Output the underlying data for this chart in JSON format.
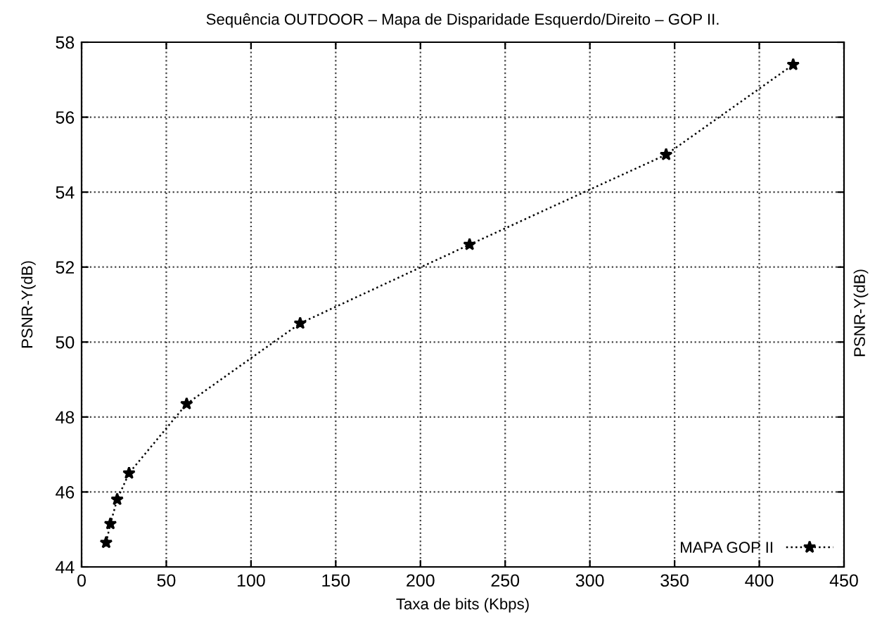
{
  "chart_data": {
    "type": "line",
    "title": "Sequência OUTDOOR – Mapa de Disparidade Esquerdo/Direito – GOP II.",
    "xlabel": "Taxa de bits (Kbps)",
    "ylabel": "PSNR-Y(dB)",
    "y2label": "PSNR-Y(dB)",
    "series": [
      {
        "name": "MAPA GOP II",
        "color": "#000000",
        "x": [
          14.5,
          17,
          21,
          28,
          62,
          129,
          229,
          345,
          420
        ],
        "values": [
          44.65,
          45.15,
          45.8,
          46.5,
          48.35,
          50.5,
          52.6,
          55.0,
          57.4
        ]
      }
    ],
    "xlim": [
      0,
      450
    ],
    "xticks": [
      0,
      50,
      100,
      150,
      200,
      250,
      300,
      350,
      400,
      450
    ],
    "ylim": [
      44,
      58
    ],
    "yticks": [
      44,
      46,
      48,
      50,
      52,
      54,
      56,
      58
    ],
    "grid": true,
    "legend": "bottom right",
    "marker": "star",
    "line_style": "dotted"
  }
}
